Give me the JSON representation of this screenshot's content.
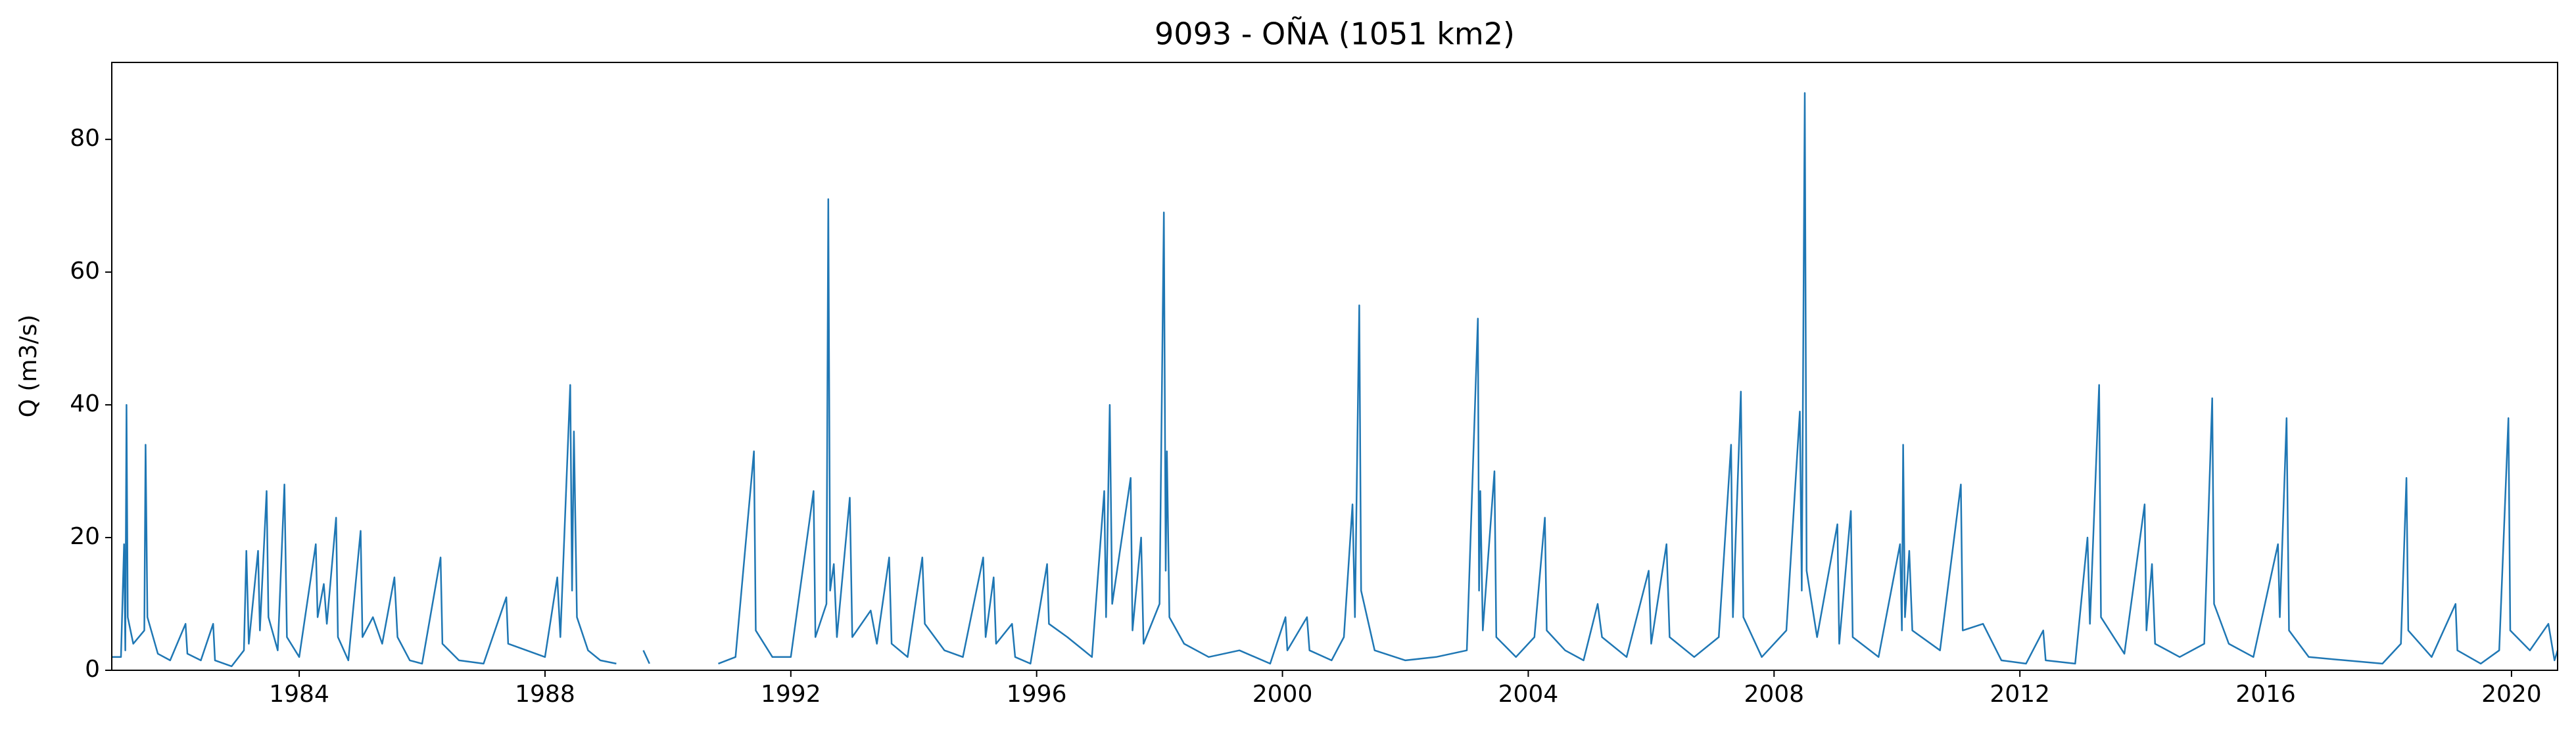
{
  "chart_data": {
    "type": "line",
    "title": "9093 - OÑA (1051 km2)",
    "y_label": "Q (m3/s)",
    "xlim": [
      1980.95,
      2020.75
    ],
    "xticks": [
      1984,
      1988,
      1992,
      1996,
      2000,
      2004,
      2008,
      2012,
      2016,
      2020
    ],
    "ylim": [
      0,
      91.6
    ],
    "yticks": [
      0,
      20,
      40,
      60,
      80
    ],
    "grid": false,
    "series": [
      {
        "color": "#1f77b4",
        "x": [
          1980.95,
          1981.1,
          1981.15,
          1981.17,
          1981.19,
          1981.21,
          1981.3,
          1981.48,
          1981.5,
          1981.53,
          1981.7,
          1981.9,
          1982.15,
          1982.18,
          1982.4,
          1982.6,
          1982.63,
          1982.9,
          1983.1,
          1983.14,
          1983.18,
          1983.33,
          1983.36,
          1983.47,
          1983.5,
          1983.65,
          1983.76,
          1983.8,
          1984.0,
          1984.27,
          1984.3,
          1984.4,
          1984.45,
          1984.6,
          1984.63,
          1984.8,
          1985.0,
          1985.03,
          1985.2,
          1985.35,
          1985.55,
          1985.6,
          1985.8,
          1986.0,
          1986.3,
          1986.33,
          1986.6,
          1987.0,
          1987.37,
          1987.4,
          1987.7,
          1988.0,
          1988.2,
          1988.25,
          1988.41,
          1988.44,
          1988.47,
          1988.52,
          1988.7,
          1988.9,
          1989.16,
          1989.3,
          1989.6,
          1989.7,
          1990.2,
          1990.82,
          1991.1,
          1991.4,
          1991.43,
          1991.7,
          1992.0,
          1992.37,
          1992.4,
          1992.58,
          1992.61,
          1992.64,
          1992.7,
          1992.75,
          1992.96,
          1993.0,
          1993.3,
          1993.4,
          1993.6,
          1993.64,
          1993.9,
          1994.14,
          1994.18,
          1994.5,
          1994.8,
          1995.13,
          1995.17,
          1995.3,
          1995.34,
          1995.6,
          1995.65,
          1995.9,
          1996.17,
          1996.2,
          1996.5,
          1996.9,
          1997.1,
          1997.13,
          1997.19,
          1997.23,
          1997.53,
          1997.56,
          1997.7,
          1997.74,
          1998.0,
          1998.07,
          1998.1,
          1998.12,
          1998.16,
          1998.4,
          1998.8,
          1999.3,
          1999.8,
          2000.05,
          2000.08,
          2000.4,
          2000.44,
          2000.8,
          2001.0,
          2001.14,
          2001.18,
          2001.25,
          2001.28,
          2001.5,
          2002.0,
          2002.5,
          2003.0,
          2003.18,
          2003.2,
          2003.22,
          2003.26,
          2003.45,
          2003.48,
          2003.8,
          2004.1,
          2004.27,
          2004.3,
          2004.6,
          2004.9,
          2005.13,
          2005.2,
          2005.6,
          2005.96,
          2006.0,
          2006.25,
          2006.3,
          2006.7,
          2007.1,
          2007.3,
          2007.33,
          2007.46,
          2007.5,
          2007.8,
          2008.2,
          2008.42,
          2008.45,
          2008.5,
          2008.53,
          2008.7,
          2009.03,
          2009.06,
          2009.25,
          2009.28,
          2009.7,
          2010.05,
          2010.08,
          2010.1,
          2010.13,
          2010.2,
          2010.25,
          2010.7,
          2011.04,
          2011.07,
          2011.4,
          2011.7,
          2012.1,
          2012.38,
          2012.42,
          2012.9,
          2013.1,
          2013.14,
          2013.29,
          2013.32,
          2013.7,
          2014.03,
          2014.06,
          2014.15,
          2014.2,
          2014.6,
          2015.0,
          2015.13,
          2015.16,
          2015.4,
          2015.8,
          2016.2,
          2016.23,
          2016.34,
          2016.38,
          2016.7,
          2017.3,
          2017.9,
          2018.2,
          2018.29,
          2018.32,
          2018.7,
          2019.09,
          2019.12,
          2019.5,
          2019.8,
          2019.95,
          2019.98,
          2020.3,
          2020.6,
          2020.7,
          2020.75
        ],
        "values": [
          2,
          2,
          19,
          3,
          40,
          8,
          4,
          6,
          34,
          8,
          2.5,
          1.5,
          7,
          2.5,
          1.5,
          7,
          1.5,
          0.6,
          3,
          18,
          4,
          18,
          6,
          27,
          8,
          3,
          28,
          5,
          2,
          19,
          8,
          13,
          7,
          23,
          5,
          1.5,
          21,
          5,
          8,
          4,
          14,
          5,
          1.5,
          1,
          17,
          4,
          1.5,
          1,
          11,
          4,
          3,
          2,
          14,
          5,
          43,
          12,
          36,
          8,
          3,
          1.5,
          1,
          null,
          3,
          1,
          null,
          1,
          2,
          33,
          6,
          2,
          2,
          27,
          5,
          10,
          71,
          12,
          16,
          5,
          26,
          5,
          9,
          4,
          17,
          4,
          2,
          17,
          7,
          3,
          2,
          17,
          5,
          14,
          4,
          7,
          2,
          1,
          16,
          7,
          5,
          2,
          27,
          8,
          40,
          10,
          29,
          6,
          20,
          4,
          10,
          69,
          15,
          33,
          8,
          4,
          2,
          3,
          1,
          8,
          3,
          8,
          3,
          1.5,
          5,
          25,
          8,
          55,
          12,
          3,
          1.5,
          2,
          3,
          53,
          12,
          27,
          6,
          30,
          5,
          2,
          5,
          23,
          6,
          3,
          1.5,
          10,
          5,
          2,
          15,
          4,
          19,
          5,
          2,
          5,
          34,
          8,
          42,
          8,
          2,
          6,
          39,
          12,
          87,
          15,
          5,
          22,
          4,
          24,
          5,
          2,
          19,
          6,
          34,
          8,
          18,
          6,
          3,
          28,
          6,
          7,
          1.5,
          1,
          6,
          1.5,
          1,
          20,
          7,
          43,
          8,
          2.5,
          25,
          6,
          16,
          4,
          2,
          4,
          41,
          10,
          4,
          2,
          19,
          8,
          38,
          6,
          2,
          1.5,
          1,
          4,
          29,
          6,
          2,
          10,
          3,
          1,
          3,
          38,
          6,
          3,
          7,
          1.5,
          3
        ]
      }
    ]
  }
}
